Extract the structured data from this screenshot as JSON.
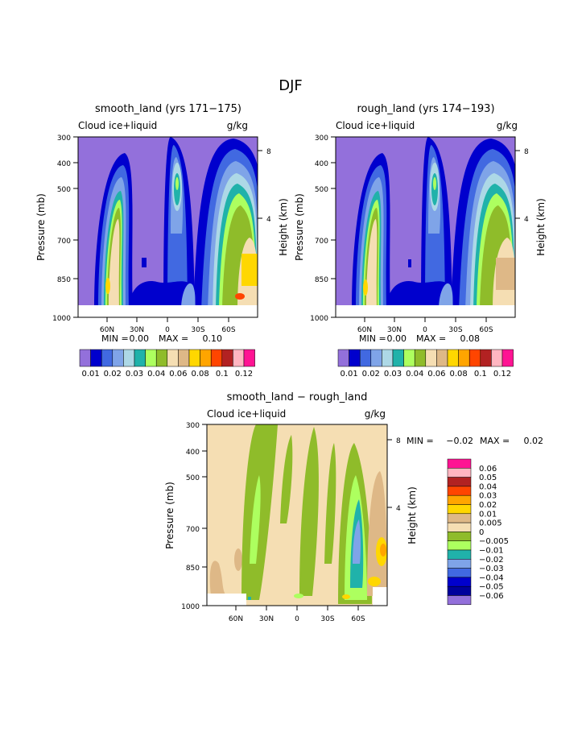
{
  "figure_title": "DJF",
  "chart_data": [
    {
      "type": "heatmap",
      "title": "smooth_land (yrs 171−175)",
      "left_label": "Cloud ice+liquid",
      "right_label": "g/kg",
      "ylabel": "Pressure (mb)",
      "ylabel_right": "Height (km)",
      "y_ticks": [
        "300",
        "400",
        "500",
        "700",
        "850",
        "1000"
      ],
      "y_right_ticks": [
        "8",
        "4"
      ],
      "x_ticks": [
        "60N",
        "30N",
        "0",
        "30S",
        "60S"
      ],
      "stats": {
        "min_label": "MIN =",
        "min": "0.00",
        "max_label": "MAX =",
        "max": "0.10"
      },
      "colorbar": {
        "labels": [
          "0.01",
          "0.02",
          "0.03",
          "0.04",
          "0.06",
          "0.08",
          "0.1",
          "0.12"
        ],
        "colors": [
          "#9370db",
          "#0000cd",
          "#4169e1",
          "#7fa4e8",
          "#add8e6",
          "#20b2aa",
          "#adff5f",
          "#8fbc2a",
          "#f5deb3",
          "#deb887",
          "#ffd700",
          "#ffa500",
          "#ff4500",
          "#b22222",
          "#ffb6c1",
          "#ff1493"
        ]
      }
    },
    {
      "type": "heatmap",
      "title": "rough_land (yrs 174−193)",
      "left_label": "Cloud ice+liquid",
      "right_label": "g/kg",
      "ylabel": "Pressure (mb)",
      "ylabel_right": "Height (km)",
      "y_ticks": [
        "300",
        "400",
        "500",
        "700",
        "850",
        "1000"
      ],
      "y_right_ticks": [
        "8",
        "4"
      ],
      "x_ticks": [
        "60N",
        "30N",
        "0",
        "30S",
        "60S"
      ],
      "stats": {
        "min_label": "MIN =",
        "min": "0.00",
        "max_label": "MAX =",
        "max": "0.08"
      },
      "colorbar": {
        "labels": [
          "0.01",
          "0.02",
          "0.03",
          "0.04",
          "0.06",
          "0.08",
          "0.1",
          "0.12"
        ],
        "colors": [
          "#9370db",
          "#0000cd",
          "#4169e1",
          "#7fa4e8",
          "#add8e6",
          "#20b2aa",
          "#adff5f",
          "#8fbc2a",
          "#f5deb3",
          "#deb887",
          "#ffd700",
          "#ffa500",
          "#ff4500",
          "#b22222",
          "#ffb6c1",
          "#ff1493"
        ]
      }
    },
    {
      "type": "heatmap",
      "title": "smooth_land − rough_land",
      "left_label": "Cloud ice+liquid",
      "right_label": "g/kg",
      "ylabel": "Pressure (mb)",
      "ylabel_right": "Height (km)",
      "y_ticks": [
        "300",
        "400",
        "500",
        "700",
        "850",
        "1000"
      ],
      "y_right_ticks": [
        "8",
        "4"
      ],
      "x_ticks": [
        "60N",
        "30N",
        "0",
        "30S",
        "60S"
      ],
      "stats": {
        "min_label": "MIN =",
        "min": "−0.02",
        "max_label": "MAX =",
        "max": "0.02"
      },
      "colorbar": {
        "labels": [
          "0.06",
          "0.05",
          "0.04",
          "0.03",
          "0.02",
          "0.01",
          "0.005",
          "0",
          "−0.005",
          "−0.01",
          "−0.02",
          "−0.03",
          "−0.04",
          "−0.05",
          "−0.06"
        ],
        "colors": [
          "#ff1493",
          "#ffb6c1",
          "#b22222",
          "#ff4500",
          "#ffa500",
          "#ffd700",
          "#deb887",
          "#f5deb3",
          "#8fbc2a",
          "#adff5f",
          "#20b2aa",
          "#7fa4e8",
          "#4169e1",
          "#0000cd",
          "#00009c",
          "#9370db"
        ]
      }
    }
  ]
}
